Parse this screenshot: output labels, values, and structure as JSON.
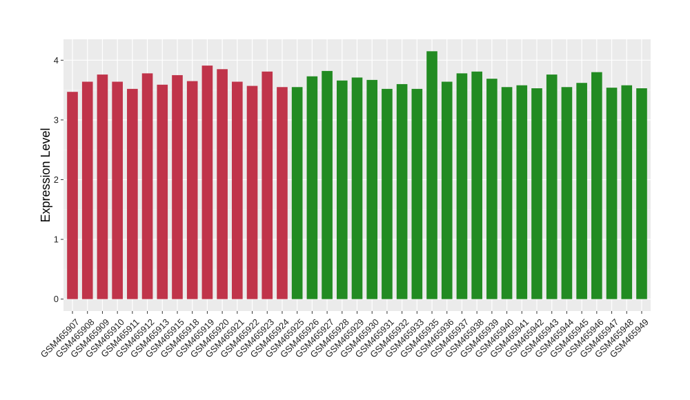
{
  "chart_data": {
    "type": "bar",
    "title": "",
    "xlabel": "",
    "ylabel": "Expression Level",
    "ylim": [
      -0.2,
      4.35
    ],
    "yticks": [
      0,
      1,
      2,
      3,
      4
    ],
    "grid": true,
    "legend": "none",
    "panel_background": "#ebebeb",
    "categories": [
      "GSM465907",
      "GSM465908",
      "GSM465909",
      "GSM465910",
      "GSM465911",
      "GSM465912",
      "GSM465913",
      "GSM465915",
      "GSM465918",
      "GSM465919",
      "GSM465920",
      "GSM465921",
      "GSM465922",
      "GSM465923",
      "GSM465924",
      "GSM465925",
      "GSM465926",
      "GSM465927",
      "GSM465928",
      "GSM465929",
      "GSM465930",
      "GSM465931",
      "GSM465932",
      "GSM465933",
      "GSM465935",
      "GSM465936",
      "GSM465937",
      "GSM465938",
      "GSM465939",
      "GSM465940",
      "GSM465941",
      "GSM465942",
      "GSM465943",
      "GSM465944",
      "GSM465945",
      "GSM465946",
      "GSM465947",
      "GSM465948",
      "GSM465949"
    ],
    "values": [
      3.47,
      3.64,
      3.76,
      3.64,
      3.52,
      3.78,
      3.59,
      3.75,
      3.65,
      3.91,
      3.85,
      3.64,
      3.57,
      3.81,
      3.55,
      3.55,
      3.73,
      3.82,
      3.66,
      3.71,
      3.67,
      3.52,
      3.6,
      3.52,
      4.15,
      3.64,
      3.78,
      3.81,
      3.69,
      3.55,
      3.58,
      3.53,
      3.76,
      3.55,
      3.62,
      3.8,
      3.54,
      3.58,
      3.53
    ],
    "colors": [
      "#c0344a",
      "#c0344a",
      "#c0344a",
      "#c0344a",
      "#c0344a",
      "#c0344a",
      "#c0344a",
      "#c0344a",
      "#c0344a",
      "#c0344a",
      "#c0344a",
      "#c0344a",
      "#c0344a",
      "#c0344a",
      "#c0344a",
      "#228b22",
      "#228b22",
      "#228b22",
      "#228b22",
      "#228b22",
      "#228b22",
      "#228b22",
      "#228b22",
      "#228b22",
      "#228b22",
      "#228b22",
      "#228b22",
      "#228b22",
      "#228b22",
      "#228b22",
      "#228b22",
      "#228b22",
      "#228b22",
      "#228b22",
      "#228b22",
      "#228b22",
      "#228b22",
      "#228b22",
      "#228b22"
    ]
  }
}
